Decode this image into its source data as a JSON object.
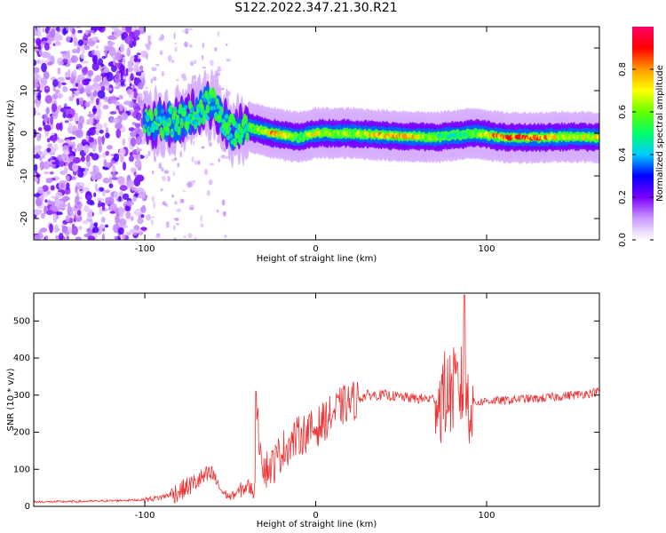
{
  "title": "S122.2022.347.21.30.R21",
  "chart_data": [
    {
      "type": "heatmap",
      "xlabel": "Height of straight line (km)",
      "ylabel": "Frequency (Hz)",
      "xlim": [
        -165,
        166
      ],
      "ylim": [
        -25,
        25
      ],
      "xticks": [
        -100,
        0,
        100
      ],
      "yticks": [
        -20,
        -10,
        0,
        10,
        20
      ],
      "colorbar": {
        "label": "Normalized spectral amplitude",
        "range": [
          0,
          1
        ],
        "ticks": [
          "0.0",
          "0.2",
          "0.4",
          "0.6",
          "0.8"
        ],
        "colormap": [
          "#ffffff",
          "#cc99ff",
          "#7a00ff",
          "#0000ff",
          "#00ccff",
          "#00ff66",
          "#66ff00",
          "#ffff00",
          "#ff9900",
          "#ff0000",
          "#ff0066"
        ]
      },
      "ridge": [
        {
          "x": -100,
          "freq": 2,
          "amp": 0.45
        },
        {
          "x": -80,
          "freq": 3,
          "amp": 0.5
        },
        {
          "x": -60,
          "freq": 7,
          "amp": 0.45
        },
        {
          "x": -50,
          "freq": 0.5,
          "amp": 0.5
        },
        {
          "x": -40,
          "freq": 1.5,
          "amp": 0.55
        },
        {
          "x": -25,
          "freq": 0,
          "amp": 0.85
        },
        {
          "x": -10,
          "freq": -1,
          "amp": 0.6
        },
        {
          "x": 0,
          "freq": 0,
          "amp": 0.75
        },
        {
          "x": 20,
          "freq": 0,
          "amp": 0.65
        },
        {
          "x": 40,
          "freq": -0.5,
          "amp": 0.85
        },
        {
          "x": 60,
          "freq": -0.8,
          "amp": 0.8
        },
        {
          "x": 70,
          "freq": -1,
          "amp": 0.6
        },
        {
          "x": 80,
          "freq": -0.5,
          "amp": 0.5
        },
        {
          "x": 95,
          "freq": 0,
          "amp": 0.65
        },
        {
          "x": 110,
          "freq": -1,
          "amp": 0.95
        },
        {
          "x": 130,
          "freq": -1,
          "amp": 0.9
        },
        {
          "x": 150,
          "freq": -0.8,
          "amp": 0.7
        },
        {
          "x": 166,
          "freq": -1,
          "amp": 0.8
        }
      ]
    },
    {
      "type": "line",
      "xlabel": "Height of straight line (km)",
      "ylabel": "SNR (10 * v/v)",
      "xlim": [
        -165,
        166
      ],
      "ylim": [
        0,
        575
      ],
      "xticks": [
        -100,
        0,
        100
      ],
      "yticks": [
        0,
        100,
        200,
        300,
        400,
        500
      ],
      "color": "#ee3333",
      "series": [
        {
          "x": [
            -165,
            -140,
            -120,
            -100,
            -90,
            -80,
            -72,
            -65,
            -60,
            -55,
            -50,
            -45,
            -40,
            -36,
            -34,
            -30,
            -25,
            -20,
            -15,
            -10,
            -5,
            0,
            5,
            10,
            15,
            20,
            25,
            30,
            40,
            50,
            60,
            70,
            72,
            75,
            80,
            85,
            88,
            90,
            95,
            100,
            110,
            120,
            130,
            140,
            150,
            160,
            166
          ],
          "y": [
            12,
            13,
            15,
            18,
            25,
            40,
            60,
            80,
            85,
            40,
            25,
            40,
            55,
            40,
            220,
            100,
            110,
            150,
            170,
            190,
            200,
            210,
            230,
            250,
            270,
            280,
            290,
            300,
            300,
            295,
            290,
            290,
            280,
            300,
            310,
            320,
            300,
            280,
            280,
            285,
            285,
            290,
            290,
            295,
            300,
            305,
            310
          ]
        }
      ]
    }
  ]
}
